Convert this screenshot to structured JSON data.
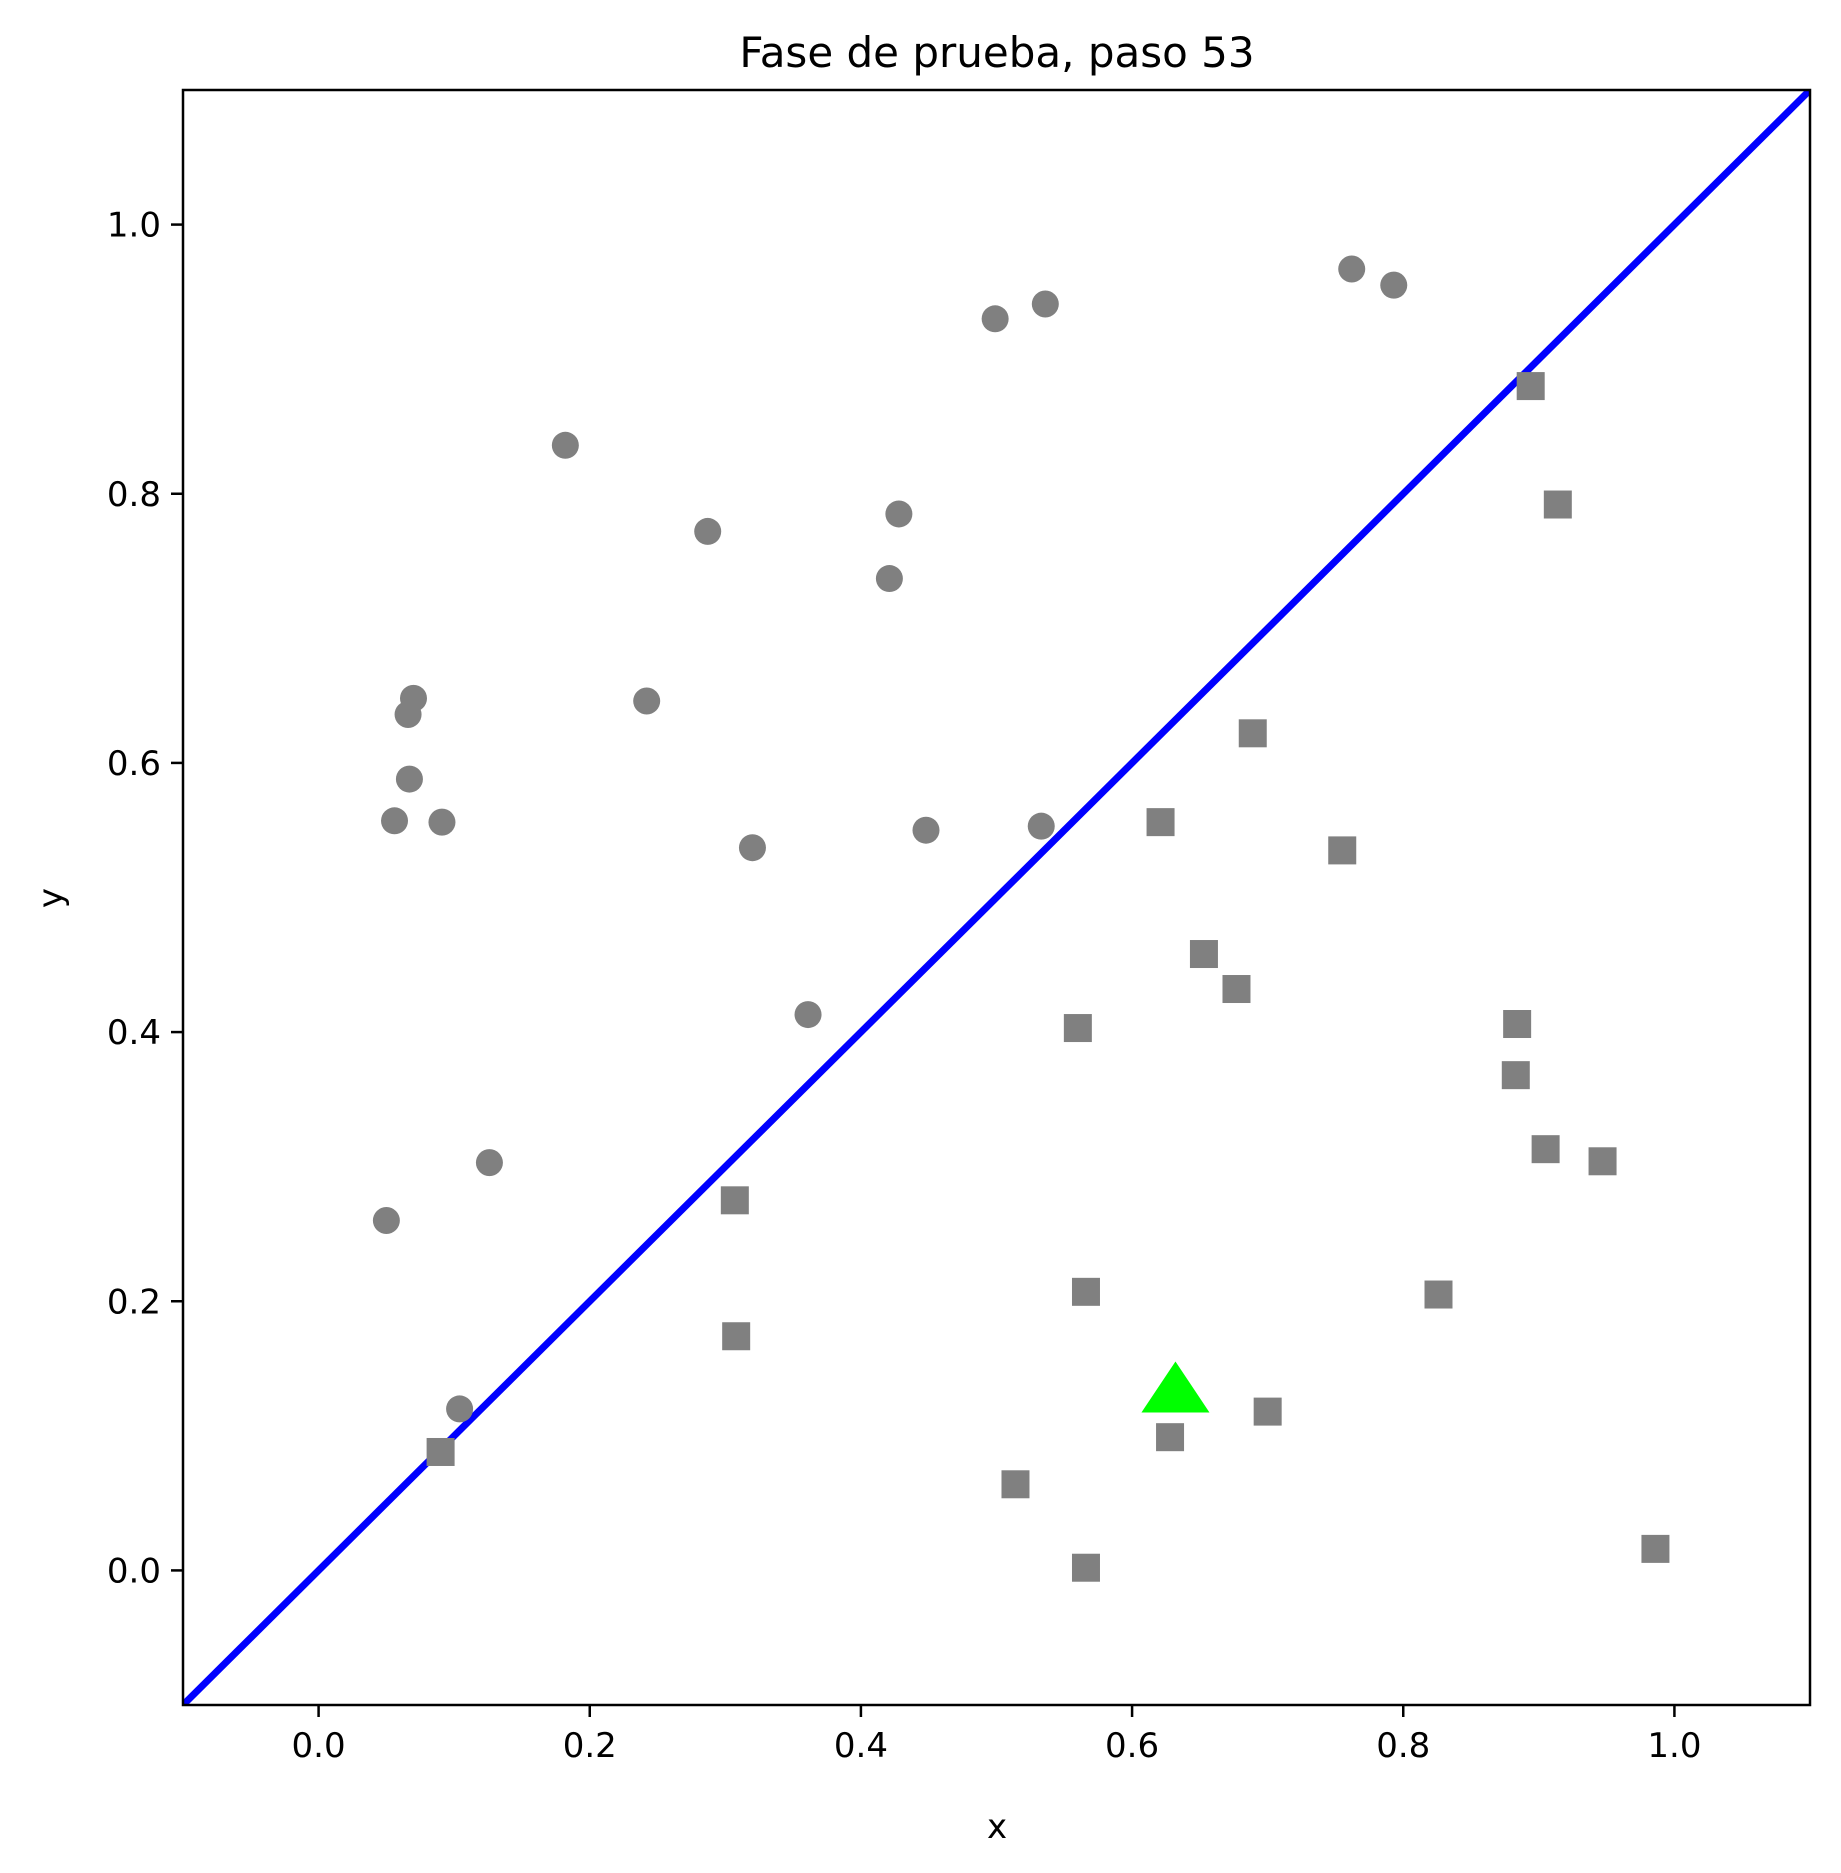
{
  "chart_data": {
    "type": "scatter",
    "title": "Fase de prueba, paso 53",
    "xlabel": "x",
    "ylabel": "y",
    "xlim": [
      -0.1,
      1.1
    ],
    "ylim": [
      -0.1,
      1.1
    ],
    "xticks": [
      0.0,
      0.2,
      0.4,
      0.6,
      0.8,
      1.0
    ],
    "yticks": [
      0.0,
      0.2,
      0.4,
      0.6,
      0.8,
      1.0
    ],
    "xtick_labels": [
      "0.0",
      "0.2",
      "0.4",
      "0.6",
      "0.8",
      "1.0"
    ],
    "ytick_labels": [
      "0.0",
      "0.2",
      "0.4",
      "0.6",
      "0.8",
      "1.0"
    ],
    "grid": false,
    "series": [
      {
        "marker": "circle",
        "color": "#808080",
        "points": [
          [
            0.182,
            0.836
          ],
          [
            0.287,
            0.772
          ],
          [
            0.428,
            0.785
          ],
          [
            0.421,
            0.737
          ],
          [
            0.499,
            0.93
          ],
          [
            0.536,
            0.941
          ],
          [
            0.762,
            0.967
          ],
          [
            0.793,
            0.955
          ],
          [
            0.07,
            0.648
          ],
          [
            0.066,
            0.636
          ],
          [
            0.242,
            0.646
          ],
          [
            0.067,
            0.588
          ],
          [
            0.056,
            0.557
          ],
          [
            0.091,
            0.556
          ],
          [
            0.32,
            0.537
          ],
          [
            0.448,
            0.55
          ],
          [
            0.533,
            0.553
          ],
          [
            0.361,
            0.413
          ],
          [
            0.126,
            0.303
          ],
          [
            0.05,
            0.26
          ],
          [
            0.104,
            0.12
          ]
        ]
      },
      {
        "marker": "square",
        "color": "#808080",
        "points": [
          [
            0.894,
            0.88
          ],
          [
            0.914,
            0.792
          ],
          [
            0.689,
            0.622
          ],
          [
            0.621,
            0.556
          ],
          [
            0.755,
            0.535
          ],
          [
            0.653,
            0.458
          ],
          [
            0.677,
            0.432
          ],
          [
            0.56,
            0.403
          ],
          [
            0.884,
            0.406
          ],
          [
            0.883,
            0.368
          ],
          [
            0.905,
            0.313
          ],
          [
            0.947,
            0.304
          ],
          [
            0.307,
            0.275
          ],
          [
            0.566,
            0.207
          ],
          [
            0.826,
            0.205
          ],
          [
            0.308,
            0.174
          ],
          [
            0.7,
            0.118
          ],
          [
            0.628,
            0.099
          ],
          [
            0.09,
            0.088
          ],
          [
            0.514,
            0.064
          ],
          [
            0.566,
            0.002
          ],
          [
            0.986,
            0.016
          ]
        ]
      },
      {
        "marker": "triangle",
        "color": "#00ff00",
        "points": [
          [
            0.632,
            0.13
          ]
        ]
      }
    ],
    "lines": [
      {
        "color": "#0000ff",
        "x": [
          -0.1,
          1.1
        ],
        "y": [
          -0.1,
          1.1
        ]
      }
    ]
  }
}
